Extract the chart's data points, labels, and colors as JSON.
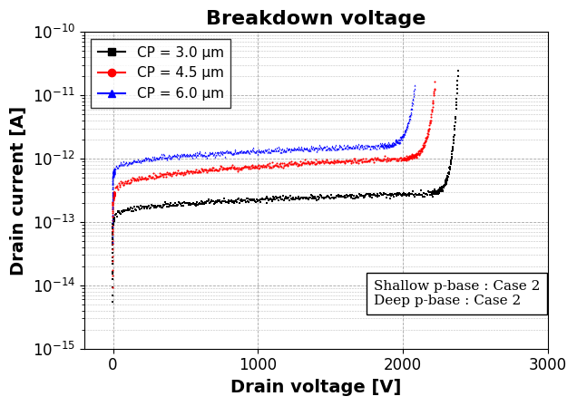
{
  "title": "Breakdown voltage",
  "xlabel": "Drain voltage [V]",
  "ylabel": "Drain current [A]",
  "xlim": [
    -200,
    3000
  ],
  "ylim_log": [
    -15,
    -10
  ],
  "xticks": [
    0,
    1000,
    2000,
    3000
  ],
  "annotation": "Shallow p-base : Case 2\nDeep p-base : Case 2",
  "series": [
    {
      "label": "CP = 3.0 μm",
      "color": "#000000",
      "marker": "s",
      "v_start": -5,
      "i_start_log": -14.3,
      "v_steep_end": 10,
      "i_steep_end_log": -12.95,
      "v_flat_end": 2200,
      "i_flat_end_log": -12.55,
      "v_knee": 2200,
      "i_knee_log": -12.55,
      "v_bd": 2380,
      "i_bd_log": -10.6
    },
    {
      "label": "CP = 4.5 μm",
      "color": "#ff0000",
      "marker": "o",
      "v_start": -5,
      "i_start_log": -14.0,
      "v_steep_end": 10,
      "i_steep_end_log": -12.55,
      "v_flat_end": 2000,
      "i_flat_end_log": -12.0,
      "v_knee": 2000,
      "i_knee_log": -12.0,
      "v_bd": 2220,
      "i_bd_log": -10.8
    },
    {
      "label": "CP = 6.0 μm",
      "color": "#0000ff",
      "marker": "^",
      "v_start": -5,
      "i_start_log": -13.3,
      "v_steep_end": 10,
      "i_steep_end_log": -12.2,
      "v_flat_end": 1850,
      "i_flat_end_log": -11.8,
      "v_knee": 1850,
      "i_knee_log": -11.8,
      "v_bd": 2080,
      "i_bd_log": -10.85
    }
  ],
  "title_fontsize": 16,
  "label_fontsize": 14,
  "tick_fontsize": 12,
  "legend_fontsize": 11,
  "annotation_fontsize": 11
}
